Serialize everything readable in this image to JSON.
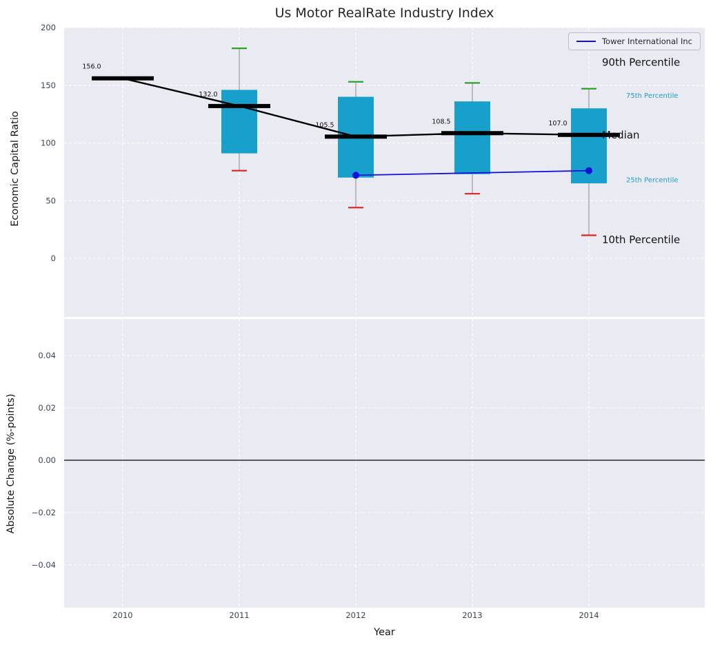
{
  "title": "Us Motor RealRate Industry Index",
  "legend": {
    "label": "Tower International Inc"
  },
  "colors": {
    "box": "#17a0cc",
    "median": "#000000",
    "series": "#1111dd",
    "whisker_high_cap": "#2ca02c",
    "whisker_low_cap": "#dd2222",
    "whisker_line": "#8a8a8a",
    "axes_bg": "#eaeaf2",
    "grid": "#ffffff",
    "tick": "#3b4453",
    "annotation_large": "#111111",
    "annotation_small": "#1a9fcb"
  },
  "x_axis": {
    "label": "Year",
    "ticks": [
      {
        "v": 2010,
        "label": "2010"
      },
      {
        "v": 2011,
        "label": "2011"
      },
      {
        "v": 2012,
        "label": "2012"
      },
      {
        "v": 2013,
        "label": "2013"
      },
      {
        "v": 2014,
        "label": "2014"
      }
    ]
  },
  "chart_data": [
    {
      "type": "boxplot+line",
      "ylabel": "Economic Capital Ratio",
      "ylim": [
        -51,
        200
      ],
      "yticks": [
        {
          "v": 0,
          "label": "0"
        },
        {
          "v": 50,
          "label": "50"
        },
        {
          "v": 100,
          "label": "100"
        },
        {
          "v": 150,
          "label": "150"
        },
        {
          "v": 200,
          "label": "200"
        }
      ],
      "boxes": [
        {
          "year": 2010,
          "median": 156.0
        },
        {
          "year": 2011,
          "median": 132.0,
          "q1": 91,
          "q3": 146,
          "whisker_low": 76,
          "whisker_high": 182
        },
        {
          "year": 2012,
          "median": 105.5,
          "q1": 70,
          "q3": 140,
          "whisker_low": 44,
          "whisker_high": 153
        },
        {
          "year": 2013,
          "median": 108.5,
          "q1": 73,
          "q3": 136,
          "whisker_low": 56,
          "whisker_high": 152
        },
        {
          "year": 2014,
          "median": 107.0,
          "q1": 65,
          "q3": 130,
          "whisker_low": 20,
          "whisker_high": 147
        }
      ],
      "median_labels": [
        "156.0",
        "132.0",
        "105.5",
        "108.5",
        "107.0"
      ],
      "series": [
        {
          "name": "Tower International Inc",
          "x": [
            2012,
            2014
          ],
          "y": [
            72,
            76
          ]
        }
      ],
      "annotations": [
        {
          "label": "90th Percentile",
          "y": 170,
          "size": "large"
        },
        {
          "label": "75th Percentile",
          "y": 142,
          "size": "small"
        },
        {
          "label": "Median",
          "y": 107,
          "size": "large"
        },
        {
          "label": "25th Percentile",
          "y": 69,
          "size": "small"
        },
        {
          "label": "10th Percentile",
          "y": 16,
          "size": "large"
        }
      ]
    },
    {
      "type": "line",
      "ylabel": "Absolute Change (%-points)",
      "ylim": [
        -0.056,
        0.054
      ],
      "yticks": [
        {
          "v": 0.04,
          "label": "0.04"
        },
        {
          "v": 0.02,
          "label": "0.02"
        },
        {
          "v": 0.0,
          "label": "0.00"
        },
        {
          "v": -0.02,
          "label": "−0.02"
        },
        {
          "v": -0.04,
          "label": "−0.04"
        }
      ],
      "zero_line": true,
      "series": []
    }
  ]
}
